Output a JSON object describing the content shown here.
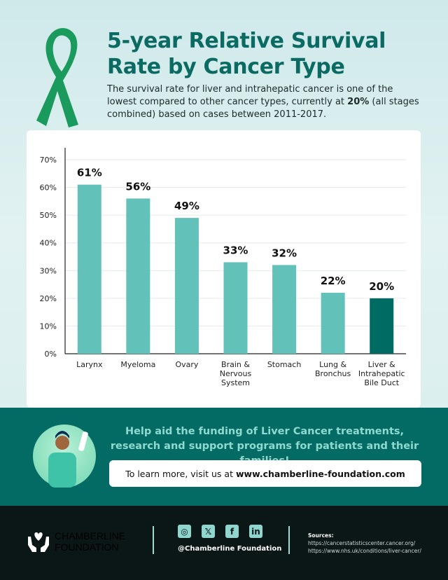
{
  "header": {
    "title_line1": "5-year Relative Survival",
    "title_line2": "Rate by Cancer Type",
    "subtitle_pre": "The survival rate for liver and intrahepatic cancer is one of the lowest compared to other cancer types, currently at ",
    "subtitle_bold": "20%",
    "subtitle_post": " (all stages combined) based on cases between 2011-2017."
  },
  "chart_data": {
    "type": "bar",
    "title": "5-year Relative Survival Rate by Cancer Type",
    "xlabel": "",
    "ylabel": "",
    "ylim": [
      0,
      70
    ],
    "yticks": [
      "0%",
      "10%",
      "20%",
      "30%",
      "40%",
      "50%",
      "60%",
      "70%"
    ],
    "grid": true,
    "categories": [
      [
        "Larynx"
      ],
      [
        "Myeloma"
      ],
      [
        "Ovary"
      ],
      [
        "Brain &",
        "Nervous",
        "System"
      ],
      [
        "Stomach"
      ],
      [
        "Lung &",
        "Bronchus"
      ],
      [
        "Liver &",
        "Intrahepatic",
        "Bile Duct"
      ]
    ],
    "values": [
      61,
      56,
      49,
      33,
      32,
      22,
      20
    ],
    "data_labels": [
      "61%",
      "56%",
      "49%",
      "33%",
      "32%",
      "22%",
      "20%"
    ],
    "highlight_index": 6
  },
  "colors": {
    "bar": "#62c1b9",
    "highlight": "#006b63",
    "title": "#0b6a62",
    "banner": "#046a64",
    "footer": "#0b1716"
  },
  "banner": {
    "text": "Help aid the funding of Liver Cancer treatments, research and support programs for patients and their families!",
    "learn_pre": "To learn more, visit us at",
    "learn_url": "www.chamberline-foundation.com"
  },
  "footer": {
    "logo_line1": "CHAMBERLINE",
    "logo_line2": "FOUNDATION",
    "handle": "@Chamberline Foundation",
    "social_icons": [
      "instagram-icon",
      "x-icon",
      "facebook-icon",
      "linkedin-icon"
    ],
    "sources_label": "Sources:",
    "sources": [
      "https://cancerstatisticscenter.cancer.org/",
      "https://www.nhs.uk/conditions/liver-cancer/"
    ]
  }
}
